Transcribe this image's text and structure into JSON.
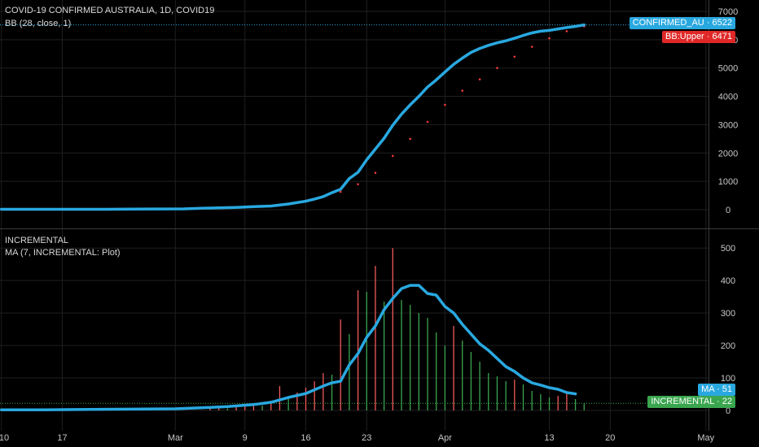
{
  "chart_data": [
    {
      "type": "line",
      "title": "COVID-19 CONFIRMED AUSTRALIA, 1D, COVID19",
      "indicator_label": "BB (28, close, 1)",
      "ylim": [
        0,
        7000
      ],
      "y_ticks": [
        "0",
        "1000",
        "2000",
        "3000",
        "4000",
        "5000",
        "6000",
        "7000"
      ],
      "x_ticks": [
        "10",
        "17",
        "Mar",
        "9",
        "16",
        "23",
        "Apr",
        "13",
        "20",
        "May"
      ],
      "grid": true,
      "series": [
        {
          "name": "CONFIRMED_AU",
          "color": "#29a8e0",
          "x": [
            "Feb 10",
            "Feb 13",
            "Feb 16",
            "Feb 19",
            "Feb 22",
            "Feb 25",
            "Feb 28",
            "Mar 2",
            "Mar 4",
            "Mar 6",
            "Mar 8",
            "Mar 10",
            "Mar 12",
            "Mar 14",
            "Mar 15",
            "Mar 16",
            "Mar 17",
            "Mar 18",
            "Mar 19",
            "Mar 20",
            "Mar 21",
            "Mar 22",
            "Mar 23",
            "Mar 24",
            "Mar 25",
            "Mar 26",
            "Mar 27",
            "Mar 28",
            "Mar 29",
            "Mar 30",
            "Mar 31",
            "Apr 1",
            "Apr 2",
            "Apr 3",
            "Apr 4",
            "Apr 5",
            "Apr 6",
            "Apr 7",
            "Apr 8",
            "Apr 9",
            "Apr 10",
            "Apr 11",
            "Apr 12",
            "Apr 13",
            "Apr 14",
            "Apr 15",
            "Apr 16",
            "Apr 17"
          ],
          "values": [
            15,
            15,
            15,
            15,
            15,
            22,
            25,
            30,
            52,
            63,
            80,
            107,
            128,
            200,
            250,
            300,
            375,
            460,
            600,
            720,
            1100,
            1320,
            1760,
            2140,
            2520,
            2980,
            3370,
            3700,
            4000,
            4330,
            4580,
            4860,
            5130,
            5350,
            5550,
            5690,
            5800,
            5890,
            5960,
            6050,
            6150,
            6240,
            6300,
            6330,
            6380,
            6430,
            6470,
            6522
          ],
          "last_value_label": "6522"
        },
        {
          "name": "BB:Upper",
          "color": "#f23b3b",
          "style": "dotted",
          "x": [
            "Feb 13",
            "Feb 16",
            "Feb 19",
            "Feb 22",
            "Feb 25",
            "Feb 28",
            "Mar 2",
            "Mar 4",
            "Mar 6",
            "Mar 8",
            "Mar 10",
            "Mar 12",
            "Mar 14",
            "Mar 16",
            "Mar 18",
            "Mar 20",
            "Mar 22",
            "Mar 24",
            "Mar 26",
            "Mar 28",
            "Mar 30",
            "Apr 1",
            "Apr 3",
            "Apr 5",
            "Apr 7",
            "Apr 9",
            "Apr 11",
            "Apr 13",
            "Apr 15",
            "Apr 17"
          ],
          "values": [
            15,
            15,
            16,
            17,
            18,
            20,
            30,
            55,
            70,
            90,
            110,
            140,
            190,
            320,
            480,
            630,
            900,
            1300,
            1900,
            2500,
            3100,
            3700,
            4200,
            4600,
            5000,
            5400,
            5750,
            6050,
            6300,
            6471
          ],
          "last_value_label": "6471"
        }
      ]
    },
    {
      "type": "bar",
      "title": "INCREMENTAL",
      "indicator_label": "MA (7, INCREMENTAL: Plot)",
      "ylim": [
        0,
        550
      ],
      "y_ticks": [
        "0",
        "100",
        "200",
        "300",
        "400",
        "500"
      ],
      "x_ticks": [
        "10",
        "17",
        "Mar",
        "9",
        "16",
        "23",
        "Apr",
        "13",
        "20",
        "May"
      ],
      "grid": true,
      "up_color": "#f25a5a",
      "down_color": "#3aa64f",
      "series": [
        {
          "name": "INCREMENTAL",
          "x": [
            "Mar 5",
            "Mar 6",
            "Mar 7",
            "Mar 8",
            "Mar 9",
            "Mar 10",
            "Mar 11",
            "Mar 12",
            "Mar 13",
            "Mar 14",
            "Mar 15",
            "Mar 16",
            "Mar 17",
            "Mar 18",
            "Mar 19",
            "Mar 20",
            "Mar 21",
            "Mar 22",
            "Mar 23",
            "Mar 24",
            "Mar 25",
            "Mar 26",
            "Mar 27",
            "Mar 28",
            "Mar 29",
            "Mar 30",
            "Mar 31",
            "Apr 1",
            "Apr 2",
            "Apr 3",
            "Apr 4",
            "Apr 5",
            "Apr 6",
            "Apr 7",
            "Apr 8",
            "Apr 9",
            "Apr 10",
            "Apr 11",
            "Apr 12",
            "Apr 13",
            "Apr 14",
            "Apr 15",
            "Apr 16",
            "Apr 17"
          ],
          "values": [
            5,
            8,
            6,
            10,
            12,
            20,
            15,
            30,
            75,
            40,
            55,
            70,
            90,
            115,
            110,
            280,
            235,
            370,
            365,
            445,
            335,
            500,
            340,
            325,
            300,
            285,
            240,
            200,
            260,
            215,
            180,
            150,
            115,
            105,
            90,
            95,
            80,
            60,
            50,
            40,
            45,
            55,
            35,
            22
          ],
          "direction": [
            "up",
            "up",
            "down",
            "up",
            "up",
            "up",
            "down",
            "up",
            "up",
            "down",
            "up",
            "up",
            "up",
            "up",
            "down",
            "up",
            "down",
            "up",
            "down",
            "up",
            "down",
            "up",
            "down",
            "down",
            "down",
            "down",
            "down",
            "down",
            "up",
            "down",
            "down",
            "down",
            "down",
            "down",
            "down",
            "up",
            "down",
            "down",
            "down",
            "down",
            "up",
            "up",
            "down",
            "down"
          ],
          "last_value_label": "22"
        },
        {
          "name": "MA",
          "color": "#29a8e0",
          "x": [
            "Feb 10",
            "Feb 15",
            "Feb 20",
            "Feb 25",
            "Mar 1",
            "Mar 4",
            "Mar 7",
            "Mar 10",
            "Mar 12",
            "Mar 14",
            "Mar 16",
            "Mar 18",
            "Mar 19",
            "Mar 20",
            "Mar 21",
            "Mar 22",
            "Mar 23",
            "Mar 24",
            "Mar 25",
            "Mar 26",
            "Mar 27",
            "Mar 28",
            "Mar 29",
            "Mar 30",
            "Mar 31",
            "Apr 1",
            "Apr 2",
            "Apr 3",
            "Apr 4",
            "Apr 5",
            "Apr 6",
            "Apr 7",
            "Apr 8",
            "Apr 9",
            "Apr 10",
            "Apr 11",
            "Apr 12",
            "Apr 13",
            "Apr 14",
            "Apr 15",
            "Apr 16"
          ],
          "values": [
            2,
            2,
            3,
            4,
            5,
            8,
            12,
            18,
            25,
            40,
            52,
            75,
            85,
            90,
            140,
            175,
            225,
            260,
            310,
            345,
            375,
            385,
            385,
            360,
            355,
            320,
            300,
            265,
            235,
            205,
            185,
            160,
            135,
            120,
            100,
            85,
            78,
            70,
            65,
            55,
            51
          ],
          "last_value_label": "51"
        }
      ]
    }
  ]
}
